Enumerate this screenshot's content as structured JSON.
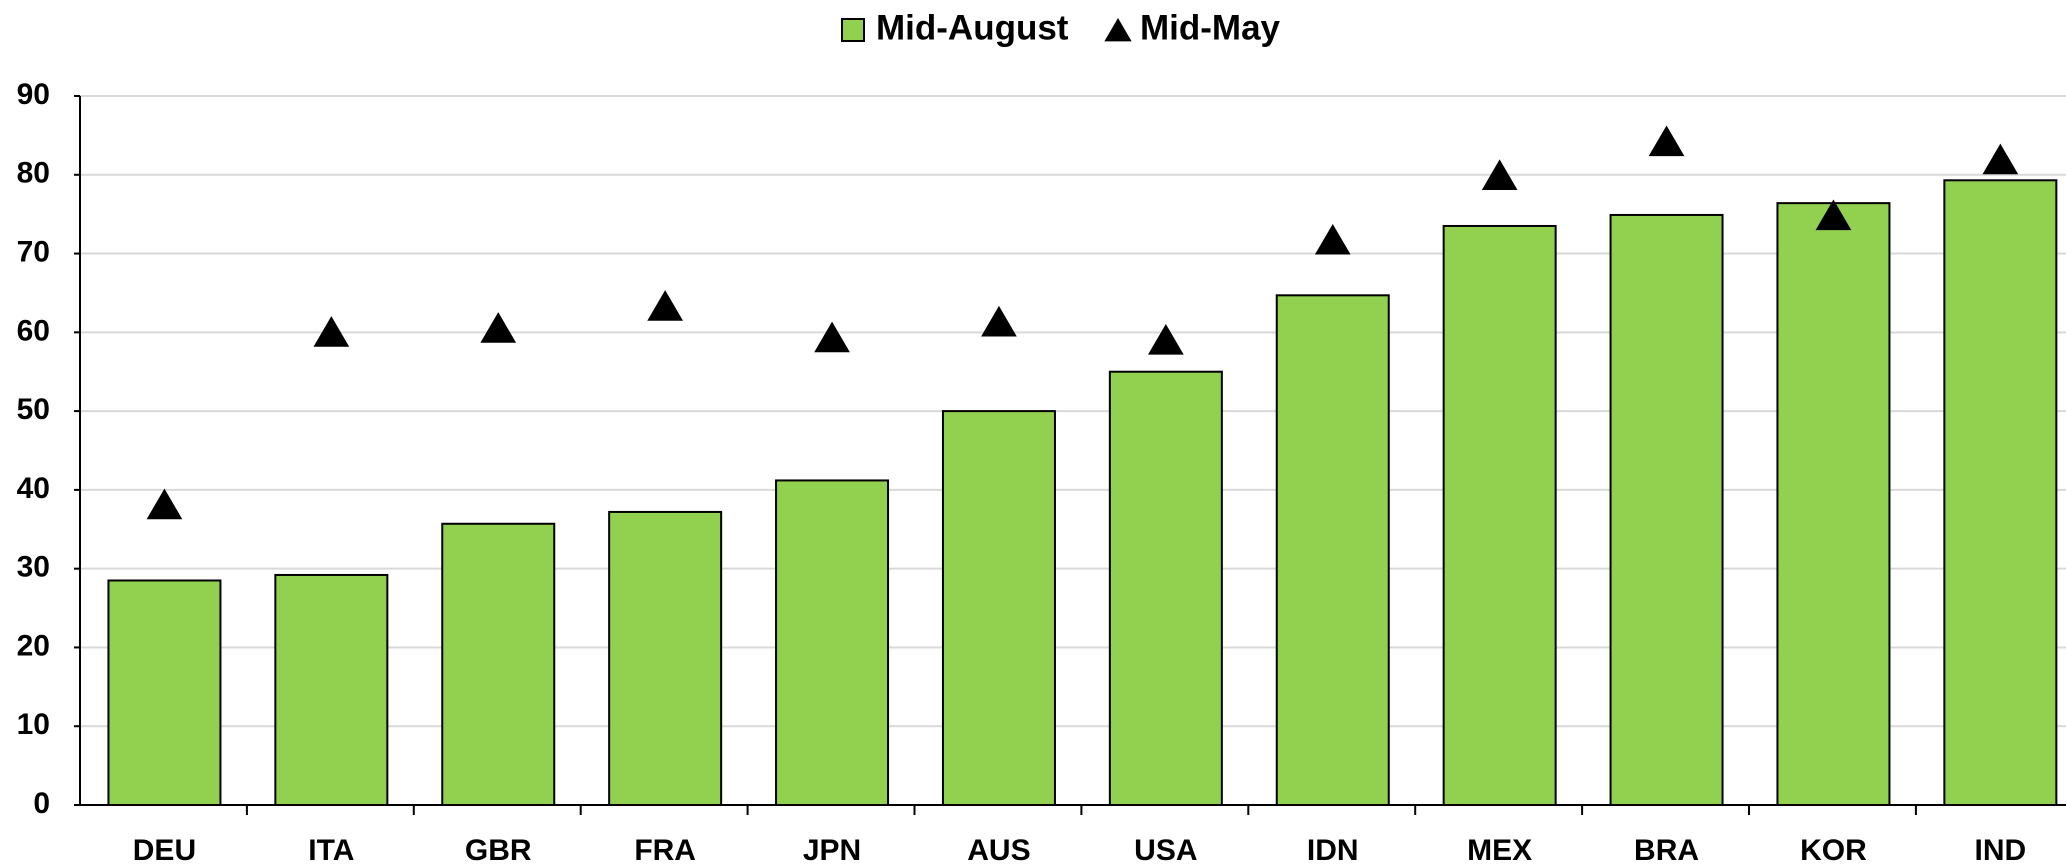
{
  "chart_data": {
    "type": "bar",
    "categories": [
      "DEU",
      "ITA",
      "GBR",
      "FRA",
      "JPN",
      "AUS",
      "USA",
      "IDN",
      "MEX",
      "BRA",
      "KOR",
      "IND"
    ],
    "series": [
      {
        "name": "Mid-August",
        "color": "#92d050",
        "values": [
          28.5,
          29.2,
          35.7,
          37.2,
          41.2,
          50.0,
          55.0,
          64.7,
          73.5,
          74.9,
          76.4,
          79.3
        ]
      },
      {
        "name": "Mid-May",
        "color": "#000000",
        "marker": "triangle",
        "values": [
          38.0,
          59.9,
          60.4,
          63.2,
          59.2,
          61.2,
          58.9,
          71.6,
          79.8,
          84.1,
          74.7,
          81.8
        ]
      }
    ],
    "ylim": [
      0,
      90
    ],
    "yticks": [
      0,
      10,
      20,
      30,
      40,
      50,
      60,
      70,
      80,
      90
    ],
    "grid": true,
    "legend": "top"
  }
}
